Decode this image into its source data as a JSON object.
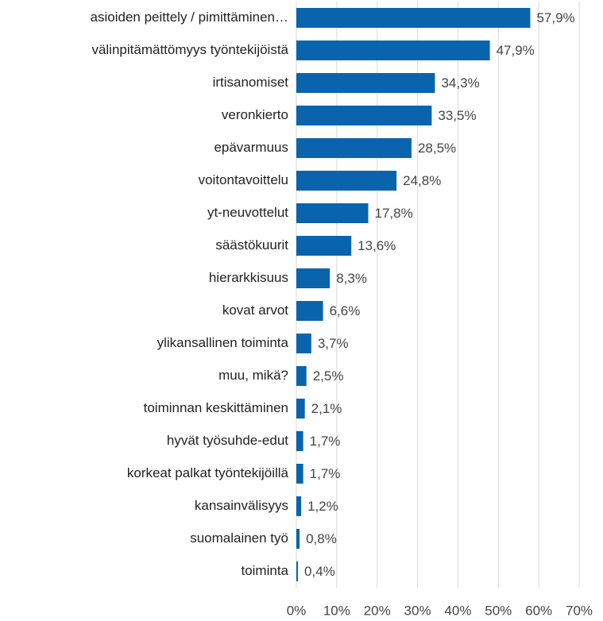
{
  "chart_data": {
    "type": "barh",
    "categories": [
      "asioiden peittely / pimittäminen…",
      "välinpitämättömyys työntekijöistä",
      "irtisanomiset",
      "veronkierto",
      "epävarmuus",
      "voitontavoittelu",
      "yt-neuvottelut",
      "säästökuurit",
      "hierarkkisuus",
      "kovat arvot",
      "ylikansallinen toiminta",
      "muu, mikä?",
      "toiminnan keskittäminen",
      "hyvät työsuhde-edut",
      "korkeat palkat työntekijöillä",
      "kansainvälisyys",
      "suomalainen työ",
      "toiminta"
    ],
    "values": [
      57.9,
      47.9,
      34.3,
      33.5,
      28.5,
      24.8,
      17.8,
      13.6,
      8.3,
      6.6,
      3.7,
      2.5,
      2.1,
      1.7,
      1.7,
      1.2,
      0.8,
      0.4
    ],
    "value_labels": [
      "57,9%",
      "47,9%",
      "34,3%",
      "33,5%",
      "28,5%",
      "24,8%",
      "17,8%",
      "13,6%",
      "8,3%",
      "6,6%",
      "3,7%",
      "2,5%",
      "2,1%",
      "1,7%",
      "1,7%",
      "1,2%",
      "0,8%",
      "0,4%"
    ],
    "color": "#0a64ad",
    "xlim": [
      0,
      70
    ],
    "xticks": [
      {
        "value": 0,
        "label": "0%"
      },
      {
        "value": 10,
        "label": "10%"
      },
      {
        "value": 20,
        "label": "20%"
      },
      {
        "value": 30,
        "label": "30%"
      },
      {
        "value": 40,
        "label": "40%"
      },
      {
        "value": 50,
        "label": "50%"
      },
      {
        "value": 60,
        "label": "60%"
      },
      {
        "value": 70,
        "label": "70%"
      }
    ],
    "grid": true
  }
}
